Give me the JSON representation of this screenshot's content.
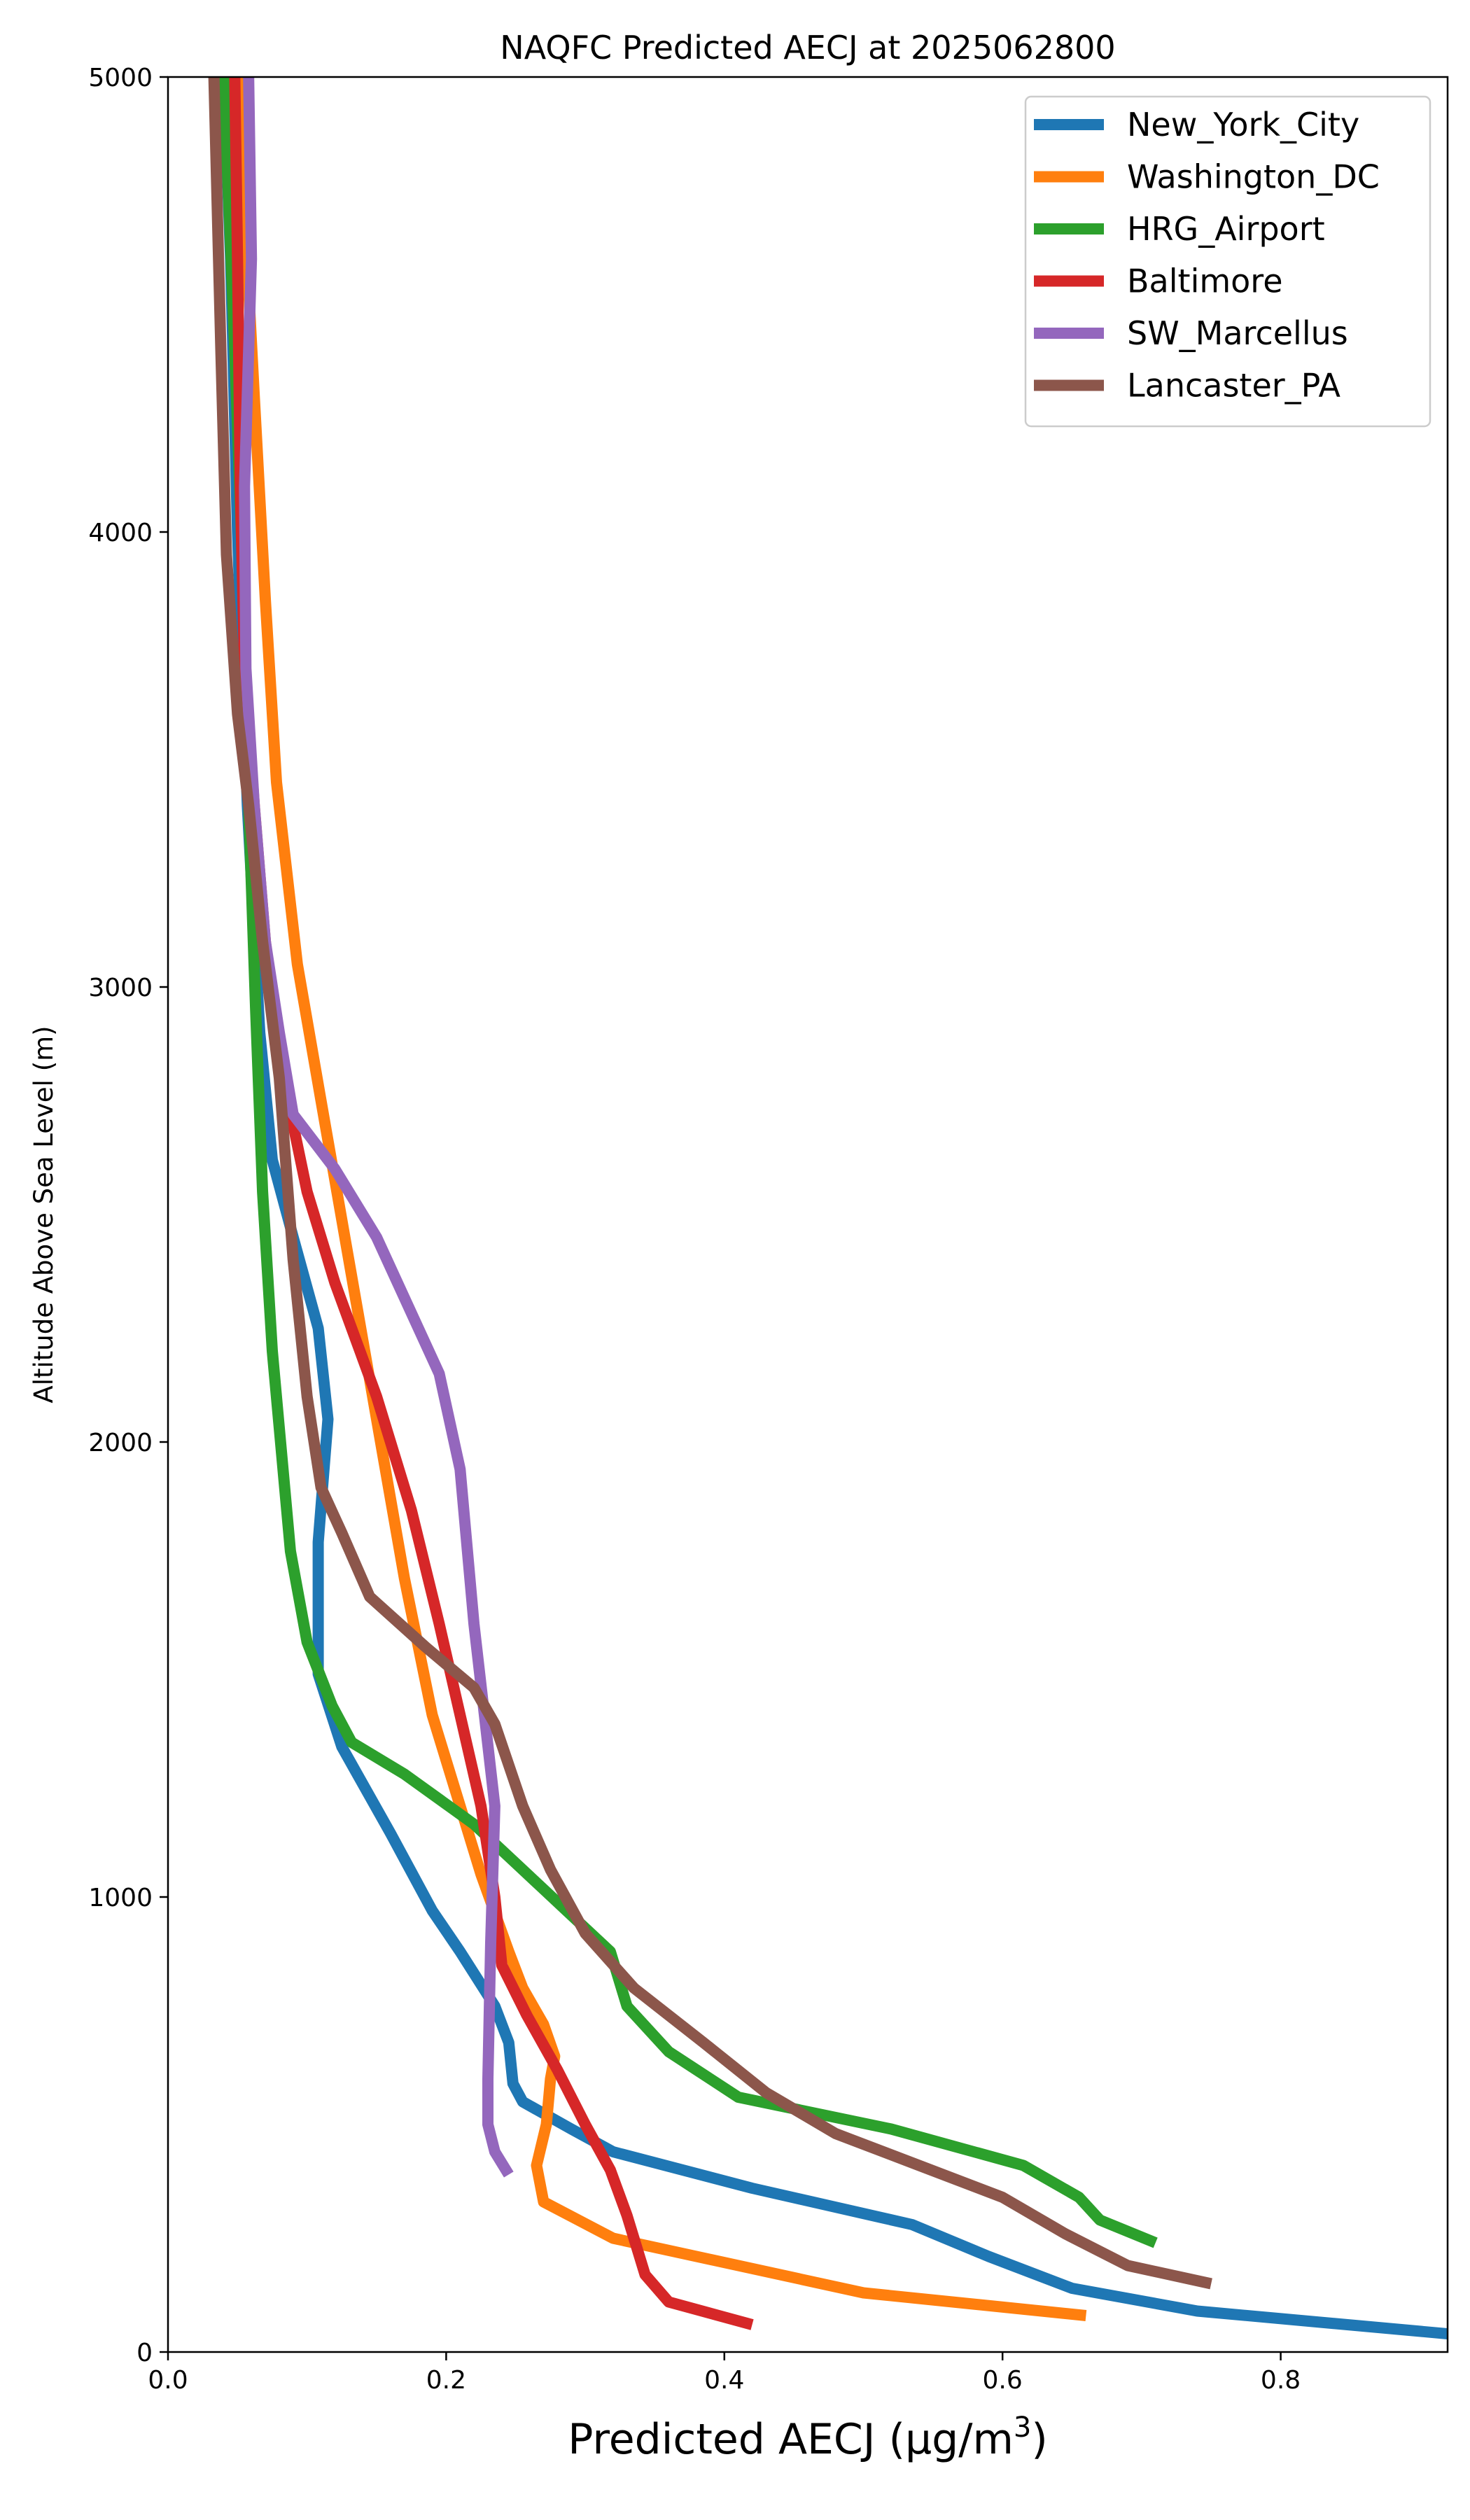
{
  "chart_data": {
    "type": "line",
    "title": "NAQFC Predicted AECJ at 2025062800",
    "xlabel": "Predicted AECJ (μg/m",
    "xlabel_sup": "3",
    "xlabel_end": ")",
    "ylabel": "Altitude Above Sea Level (m)",
    "xlim": [
      0,
      0.92
    ],
    "ylim": [
      0,
      5000
    ],
    "xticks": [
      0,
      0.2,
      0.4,
      0.6,
      0.8
    ],
    "xtick_labels": [
      "0.0",
      "0.2",
      "0.4",
      "0.6",
      "0.8"
    ],
    "yticks": [
      0,
      1000,
      2000,
      3000,
      4000,
      5000
    ],
    "ytick_labels": [
      "0",
      "1000",
      "2000",
      "3000",
      "4000",
      "5000"
    ],
    "grid": false,
    "legend_position": "top-right",
    "series": [
      {
        "name": "New_York_City",
        "color": "#1f77b4",
        "points": [
          [
            0.92,
            40
          ],
          [
            0.74,
            90
          ],
          [
            0.65,
            140
          ],
          [
            0.59,
            210
          ],
          [
            0.535,
            280
          ],
          [
            0.42,
            360
          ],
          [
            0.32,
            440
          ],
          [
            0.29,
            490
          ],
          [
            0.255,
            550
          ],
          [
            0.248,
            590
          ],
          [
            0.245,
            680
          ],
          [
            0.235,
            760
          ],
          [
            0.21,
            880
          ],
          [
            0.19,
            970
          ],
          [
            0.16,
            1140
          ],
          [
            0.125,
            1330
          ],
          [
            0.108,
            1490
          ],
          [
            0.108,
            1780
          ],
          [
            0.115,
            2050
          ],
          [
            0.108,
            2250
          ],
          [
            0.09,
            2450
          ],
          [
            0.075,
            2620
          ],
          [
            0.066,
            2900
          ],
          [
            0.057,
            3400
          ],
          [
            0.05,
            4000
          ],
          [
            0.045,
            4600
          ],
          [
            0.04,
            5000
          ]
        ]
      },
      {
        "name": "Washington_DC",
        "color": "#ff7f0e",
        "points": [
          [
            0.66,
            80
          ],
          [
            0.5,
            130
          ],
          [
            0.32,
            250
          ],
          [
            0.27,
            330
          ],
          [
            0.265,
            410
          ],
          [
            0.272,
            500
          ],
          [
            0.275,
            600
          ],
          [
            0.278,
            650
          ],
          [
            0.27,
            720
          ],
          [
            0.255,
            800
          ],
          [
            0.245,
            880
          ],
          [
            0.225,
            1050
          ],
          [
            0.21,
            1200
          ],
          [
            0.19,
            1400
          ],
          [
            0.17,
            1700
          ],
          [
            0.15,
            2050
          ],
          [
            0.13,
            2400
          ],
          [
            0.11,
            2750
          ],
          [
            0.093,
            3050
          ],
          [
            0.078,
            3450
          ],
          [
            0.07,
            3850
          ],
          [
            0.062,
            4300
          ],
          [
            0.05,
            5000
          ]
        ]
      },
      {
        "name": "HRG_Airport",
        "color": "#2ca02c",
        "points": [
          [
            0.71,
            240
          ],
          [
            0.67,
            290
          ],
          [
            0.655,
            340
          ],
          [
            0.615,
            410
          ],
          [
            0.52,
            490
          ],
          [
            0.41,
            560
          ],
          [
            0.36,
            660
          ],
          [
            0.33,
            760
          ],
          [
            0.318,
            880
          ],
          [
            0.29,
            960
          ],
          [
            0.255,
            1060
          ],
          [
            0.22,
            1160
          ],
          [
            0.17,
            1270
          ],
          [
            0.132,
            1340
          ],
          [
            0.118,
            1420
          ],
          [
            0.1,
            1560
          ],
          [
            0.088,
            1760
          ],
          [
            0.075,
            2200
          ],
          [
            0.068,
            2550
          ],
          [
            0.063,
            2950
          ],
          [
            0.058,
            3400
          ],
          [
            0.055,
            3800
          ],
          [
            0.048,
            4400
          ],
          [
            0.04,
            5000
          ]
        ]
      },
      {
        "name": "Baltimore",
        "color": "#d62728",
        "points": [
          [
            0.42,
            60
          ],
          [
            0.36,
            110
          ],
          [
            0.343,
            170
          ],
          [
            0.33,
            300
          ],
          [
            0.318,
            400
          ],
          [
            0.3,
            500
          ],
          [
            0.28,
            620
          ],
          [
            0.258,
            740
          ],
          [
            0.24,
            850
          ],
          [
            0.235,
            1000
          ],
          [
            0.225,
            1200
          ],
          [
            0.21,
            1400
          ],
          [
            0.195,
            1600
          ],
          [
            0.175,
            1850
          ],
          [
            0.15,
            2100
          ],
          [
            0.12,
            2350
          ],
          [
            0.1,
            2550
          ],
          [
            0.083,
            2800
          ],
          [
            0.07,
            3100
          ],
          [
            0.062,
            3400
          ],
          [
            0.055,
            3700
          ],
          [
            0.052,
            4100
          ],
          [
            0.05,
            4600
          ],
          [
            0.048,
            5000
          ]
        ]
      },
      {
        "name": "SW_Marcellus",
        "color": "#9467bd",
        "points": [
          [
            0.245,
            390
          ],
          [
            0.235,
            440
          ],
          [
            0.23,
            500
          ],
          [
            0.23,
            600
          ],
          [
            0.232,
            900
          ],
          [
            0.235,
            1200
          ],
          [
            0.22,
            1600
          ],
          [
            0.21,
            1940
          ],
          [
            0.195,
            2150
          ],
          [
            0.15,
            2450
          ],
          [
            0.12,
            2600
          ],
          [
            0.09,
            2720
          ],
          [
            0.08,
            2900
          ],
          [
            0.07,
            3100
          ],
          [
            0.062,
            3400
          ],
          [
            0.056,
            3700
          ],
          [
            0.055,
            4100
          ],
          [
            0.06,
            4600
          ],
          [
            0.058,
            5000
          ]
        ]
      },
      {
        "name": "Lancaster_PA",
        "color": "#8c564b",
        "points": [
          [
            0.75,
            150
          ],
          [
            0.69,
            190
          ],
          [
            0.645,
            260
          ],
          [
            0.6,
            340
          ],
          [
            0.54,
            410
          ],
          [
            0.48,
            480
          ],
          [
            0.43,
            570
          ],
          [
            0.385,
            680
          ],
          [
            0.335,
            800
          ],
          [
            0.3,
            920
          ],
          [
            0.275,
            1060
          ],
          [
            0.255,
            1200
          ],
          [
            0.235,
            1380
          ],
          [
            0.22,
            1460
          ],
          [
            0.185,
            1550
          ],
          [
            0.145,
            1660
          ],
          [
            0.125,
            1800
          ],
          [
            0.11,
            1900
          ],
          [
            0.1,
            2100
          ],
          [
            0.09,
            2400
          ],
          [
            0.08,
            2800
          ],
          [
            0.068,
            3100
          ],
          [
            0.058,
            3400
          ],
          [
            0.05,
            3600
          ],
          [
            0.042,
            3950
          ],
          [
            0.038,
            4400
          ],
          [
            0.033,
            5000
          ]
        ]
      }
    ]
  }
}
